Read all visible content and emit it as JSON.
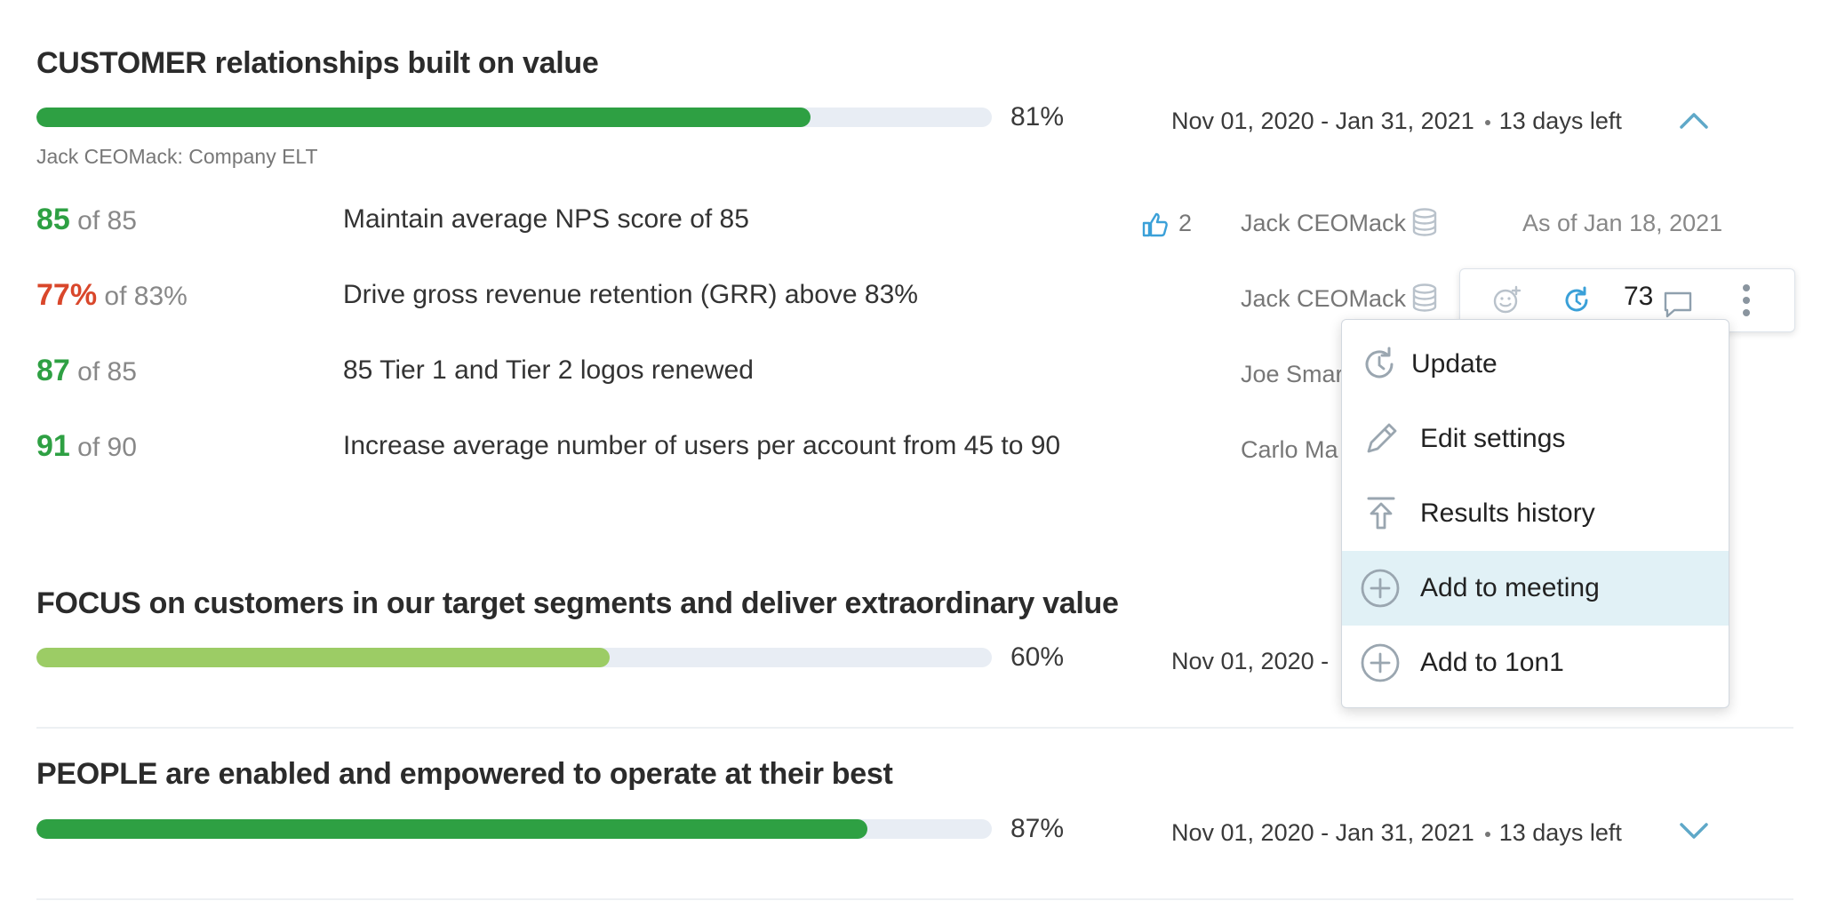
{
  "colors": {
    "progress_green": "#2ea043",
    "progress_light_green": "#9ccc65",
    "track": "#e8edf4",
    "score_green": "#2ea043",
    "score_red": "#d9472b",
    "accent_blue": "#3aa0d8",
    "menu_highlight": "#e1f1f6"
  },
  "objectives": [
    {
      "title": "CUSTOMER relationships built on value",
      "progress_percent": 81,
      "progress_label": "81%",
      "date_range": "Nov 01, 2020 - Jan 31, 2021",
      "days_left": "13  days left",
      "owner_line": "Jack CEOMack: Company ELT",
      "chevron": "chevron-up-icon",
      "key_results": [
        {
          "current": "85",
          "target": "of 85",
          "status": "green",
          "text": "Maintain average NPS score of 85",
          "likes": "2",
          "owner": "Jack CEOMack",
          "as_of": "As of Jan 18, 2021"
        },
        {
          "current": "77%",
          "target": "of 83%",
          "status": "red",
          "text": "Drive gross revenue retention (GRR) above 83%",
          "owner": "Jack CEOMack"
        },
        {
          "current": "87",
          "target": "of 85",
          "status": "green",
          "text": "85 Tier 1 and Tier 2 logos renewed",
          "owner": "Joe Smar"
        },
        {
          "current": "91",
          "target": "of 90",
          "status": "green",
          "text": "Increase average number of users per account from 45 to 90",
          "owner": "Carlo Ma"
        }
      ]
    },
    {
      "title": "FOCUS on customers in our target segments and deliver extraordinary value",
      "progress_percent": 60,
      "progress_label": "60%",
      "date_range": "Nov 01, 2020 -"
    },
    {
      "title": "PEOPLE are enabled and empowered to operate at their best",
      "progress_percent": 87,
      "progress_label": "87%",
      "date_range": "Nov 01, 2020 - Jan 31, 2021",
      "days_left": "13  days left",
      "chevron": "chevron-down-icon"
    }
  ],
  "row_toolbar": {
    "comment_count": "73",
    "icons": [
      "add-reaction-icon",
      "update-icon",
      "comment-icon",
      "more-vertical-icon"
    ]
  },
  "context_menu": {
    "items": [
      {
        "label": "Update",
        "icon": "update-icon"
      },
      {
        "label": "Edit settings",
        "icon": "pencil-icon"
      },
      {
        "label": "Results history",
        "icon": "upload-history-icon"
      },
      {
        "label": "Add to meeting",
        "icon": "plus-circle-icon",
        "highlighted": true
      },
      {
        "label": "Add to 1on1",
        "icon": "plus-circle-icon"
      }
    ]
  }
}
